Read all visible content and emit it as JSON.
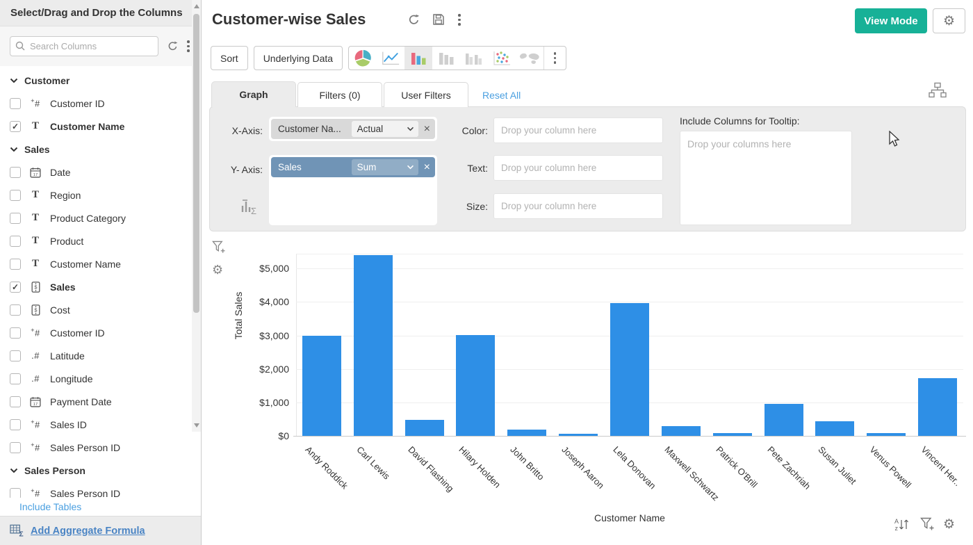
{
  "sidebar": {
    "title": "Select/Drag and Drop the Columns",
    "search_placeholder": "Search Columns",
    "rows": [
      {
        "kind": "section",
        "label": "Customer"
      },
      {
        "kind": "item",
        "icon": "integer",
        "label": "Customer ID",
        "checked": false
      },
      {
        "kind": "item",
        "icon": "text",
        "label": "Customer Name",
        "checked": true
      },
      {
        "kind": "section",
        "label": "Sales"
      },
      {
        "kind": "item",
        "icon": "date",
        "label": "Date",
        "checked": false
      },
      {
        "kind": "item",
        "icon": "text",
        "label": "Region",
        "checked": false
      },
      {
        "kind": "item",
        "icon": "text",
        "label": "Product Category",
        "checked": false
      },
      {
        "kind": "item",
        "icon": "text",
        "label": "Product",
        "checked": false
      },
      {
        "kind": "item",
        "icon": "text",
        "label": "Customer Name",
        "checked": false
      },
      {
        "kind": "item",
        "icon": "currency",
        "label": "Sales",
        "checked": true
      },
      {
        "kind": "item",
        "icon": "currency",
        "label": "Cost",
        "checked": false
      },
      {
        "kind": "item",
        "icon": "integer",
        "label": "Customer ID",
        "checked": false
      },
      {
        "kind": "item",
        "icon": "decimal",
        "label": "Latitude",
        "checked": false
      },
      {
        "kind": "item",
        "icon": "decimal",
        "label": "Longitude",
        "checked": false
      },
      {
        "kind": "item",
        "icon": "date",
        "label": "Payment Date",
        "checked": false
      },
      {
        "kind": "item",
        "icon": "integer",
        "label": "Sales ID",
        "checked": false
      },
      {
        "kind": "item",
        "icon": "integer",
        "label": "Sales Person ID",
        "checked": false
      },
      {
        "kind": "section",
        "label": "Sales Person"
      },
      {
        "kind": "item",
        "icon": "integer",
        "label": "Sales Person ID",
        "checked": false
      }
    ],
    "include_tables": "Include Tables",
    "add_aggregate_formula": "Add Aggregate Formula"
  },
  "header": {
    "title": "Customer-wise Sales",
    "view_mode": "View Mode"
  },
  "toolbar": {
    "sort": "Sort",
    "underlying_data": "Underlying Data",
    "chart_types": [
      "pie",
      "line",
      "bar",
      "bar-gray",
      "grouped-bar",
      "scatter",
      "map"
    ],
    "active_chart_type": "bar"
  },
  "tabs": {
    "graph": "Graph",
    "filters": "Filters (0)",
    "user_filters": "User Filters",
    "reset_all": "Reset All"
  },
  "panel": {
    "x_axis_label": "X-Axis:",
    "x_column": "Customer Na...",
    "x_aggregate": "Actual",
    "y_axis_label": "Y- Axis:",
    "y_column": "Sales",
    "y_aggregate": "Sum",
    "color_label": "Color:",
    "text_label": "Text:",
    "size_label": "Size:",
    "drop_placeholder": "Drop your column here",
    "tooltip_label": "Include Columns for Tooltip:",
    "tooltip_placeholder": "Drop your columns here"
  },
  "chart_data": {
    "type": "bar",
    "title": "",
    "xlabel": "Customer Name",
    "ylabel": "Total Sales",
    "categories": [
      "Andy Roddick",
      "Carl Lewis",
      "David Flashing",
      "Hilary Holden",
      "John Britto",
      "Joseph Aaron",
      "Lela Donovan",
      "Maxwell Schwartz",
      "Patrick O'Brill",
      "Pete Zachriah",
      "Susan Juliet",
      "Venus Powell",
      "Vincent Her.."
    ],
    "values": [
      2980,
      5390,
      480,
      3010,
      190,
      60,
      3960,
      290,
      80,
      960,
      430,
      90,
      1720
    ],
    "y_ticks": [
      {
        "value": 0,
        "label": "$0"
      },
      {
        "value": 1000,
        "label": "$1,000"
      },
      {
        "value": 2000,
        "label": "$2,000"
      },
      {
        "value": 3000,
        "label": "$3,000"
      },
      {
        "value": 4000,
        "label": "$4,000"
      },
      {
        "value": 5000,
        "label": "$5,000"
      }
    ],
    "ylim": [
      0,
      5440
    ],
    "grid": true,
    "legend": false,
    "bar_color": "#2E8FE6"
  },
  "icons": {
    "gear_glyph": "⚙",
    "close_glyph": "×",
    "check_glyph": "✓"
  },
  "colors": {
    "accent_teal": "#17b197",
    "link_blue": "#4a9fe0",
    "bar_blue": "#2E8FE6",
    "pill_blue": "#7094b6",
    "panel_gray": "#ececec"
  }
}
